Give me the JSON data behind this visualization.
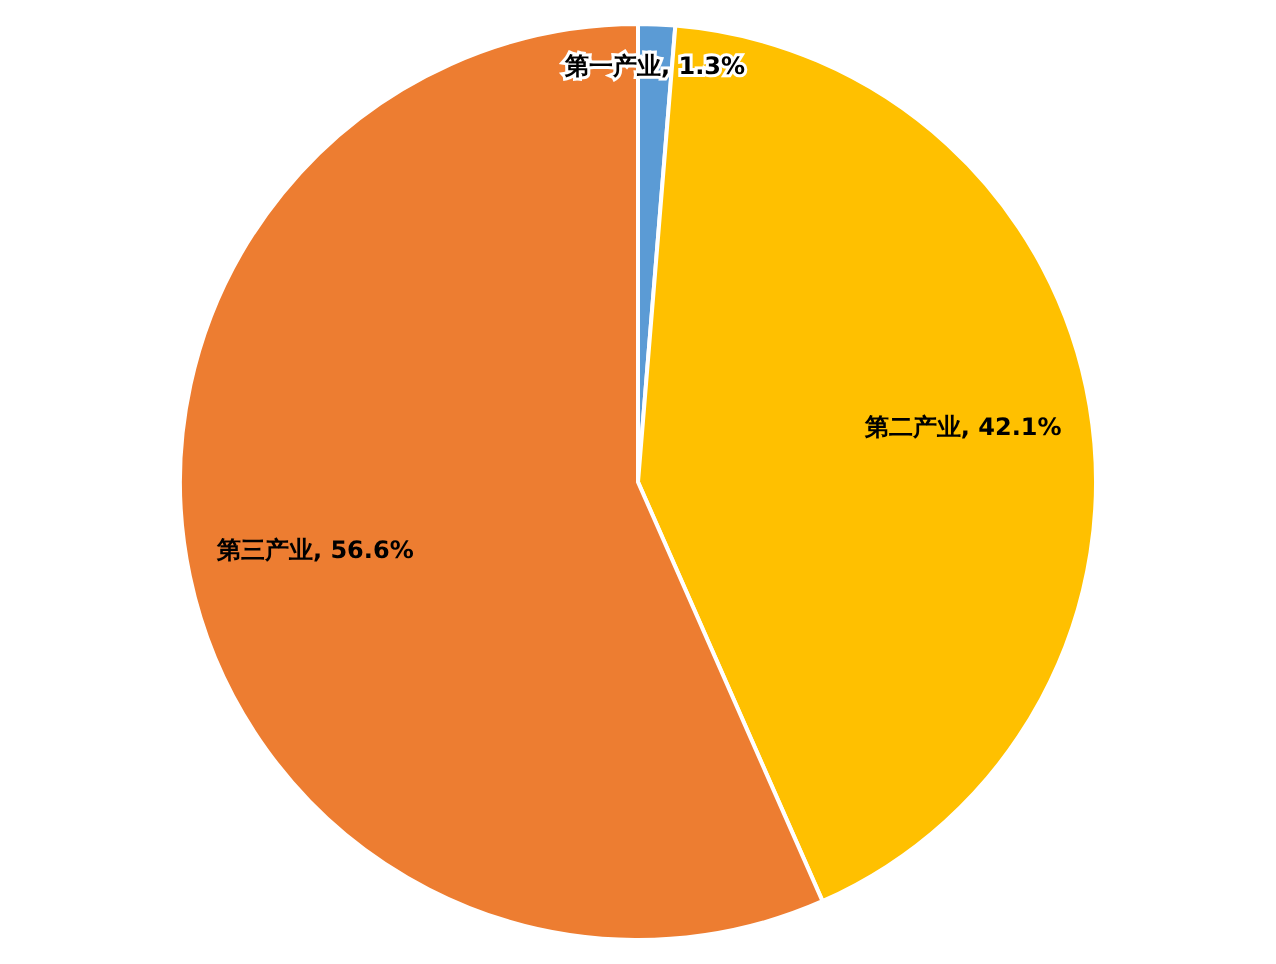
{
  "chart_data": {
    "type": "pie",
    "categories": [
      "第一产业",
      "第二产业",
      "第三产业"
    ],
    "values": [
      1.3,
      42.1,
      56.6
    ],
    "colors": [
      "#5b9bd5",
      "#ffc000",
      "#ed7d31"
    ],
    "value_labels": [
      "1.3%",
      "42.1%",
      "56.6%"
    ]
  }
}
